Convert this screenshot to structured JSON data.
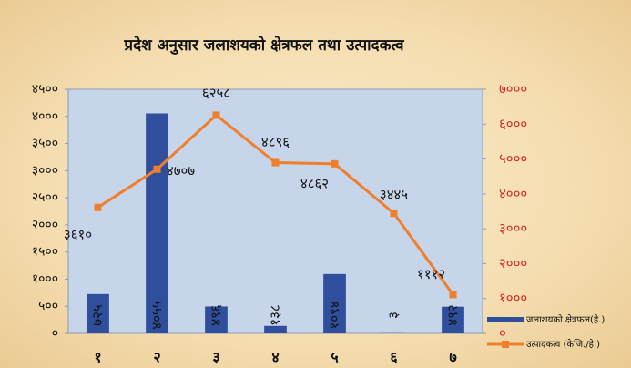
{
  "chart_data": {
    "type": "bar",
    "title": "प्रदेश अनुसार जलाशयको क्षेत्रफल तथा उत्पादकत्व",
    "categories": [
      "१",
      "२",
      "३",
      "४",
      "५",
      "६",
      "७"
    ],
    "series": [
      {
        "name": "जलाशयको क्षेत्रफल(हे.)",
        "color": "#2f4e9b",
        "type": "bar",
        "values": [
          725,
          4055,
          496,
          138,
          1094,
          3,
          492
        ],
        "value_labels": [
          "७२५",
          "४०५५",
          "४९६",
          "१३८",
          "१०९४",
          "३",
          "४९२"
        ]
      },
      {
        "name": "उत्पादकत्व (केजि./हे.)",
        "color": "#ef7f2c",
        "type": "line",
        "axis": "y2",
        "values": [
          3610,
          4707,
          6258,
          4896,
          4862,
          3445,
          1112
        ],
        "value_labels": [
          "३६१०",
          "४७०७",
          "६२५८",
          "४८९६",
          "४८६२",
          "३४४५",
          "१११२"
        ]
      }
    ],
    "ylim": [
      0,
      4500
    ],
    "yticks": [
      {
        "value": 0,
        "label": "०"
      },
      {
        "value": 500,
        "label": "५००"
      },
      {
        "value": 1000,
        "label": "१०००"
      },
      {
        "value": 1500,
        "label": "१५००"
      },
      {
        "value": 2000,
        "label": "२०००"
      },
      {
        "value": 2500,
        "label": "२५००"
      },
      {
        "value": 3000,
        "label": "३०००"
      },
      {
        "value": 3500,
        "label": "३५००"
      },
      {
        "value": 4000,
        "label": "४०००"
      },
      {
        "value": 4500,
        "label": "४५००"
      }
    ],
    "y2lim": [
      0,
      7000
    ],
    "y2ticks": [
      {
        "value": 0,
        "label": "०"
      },
      {
        "value": 1000,
        "label": "१०००"
      },
      {
        "value": 2000,
        "label": "२०००"
      },
      {
        "value": 3000,
        "label": "३०००"
      },
      {
        "value": 4000,
        "label": "४०००"
      },
      {
        "value": 5000,
        "label": "५०००"
      },
      {
        "value": 6000,
        "label": "६०००"
      },
      {
        "value": 7000,
        "label": "७०००"
      }
    ],
    "legend": "bottom-right",
    "grid": false
  }
}
